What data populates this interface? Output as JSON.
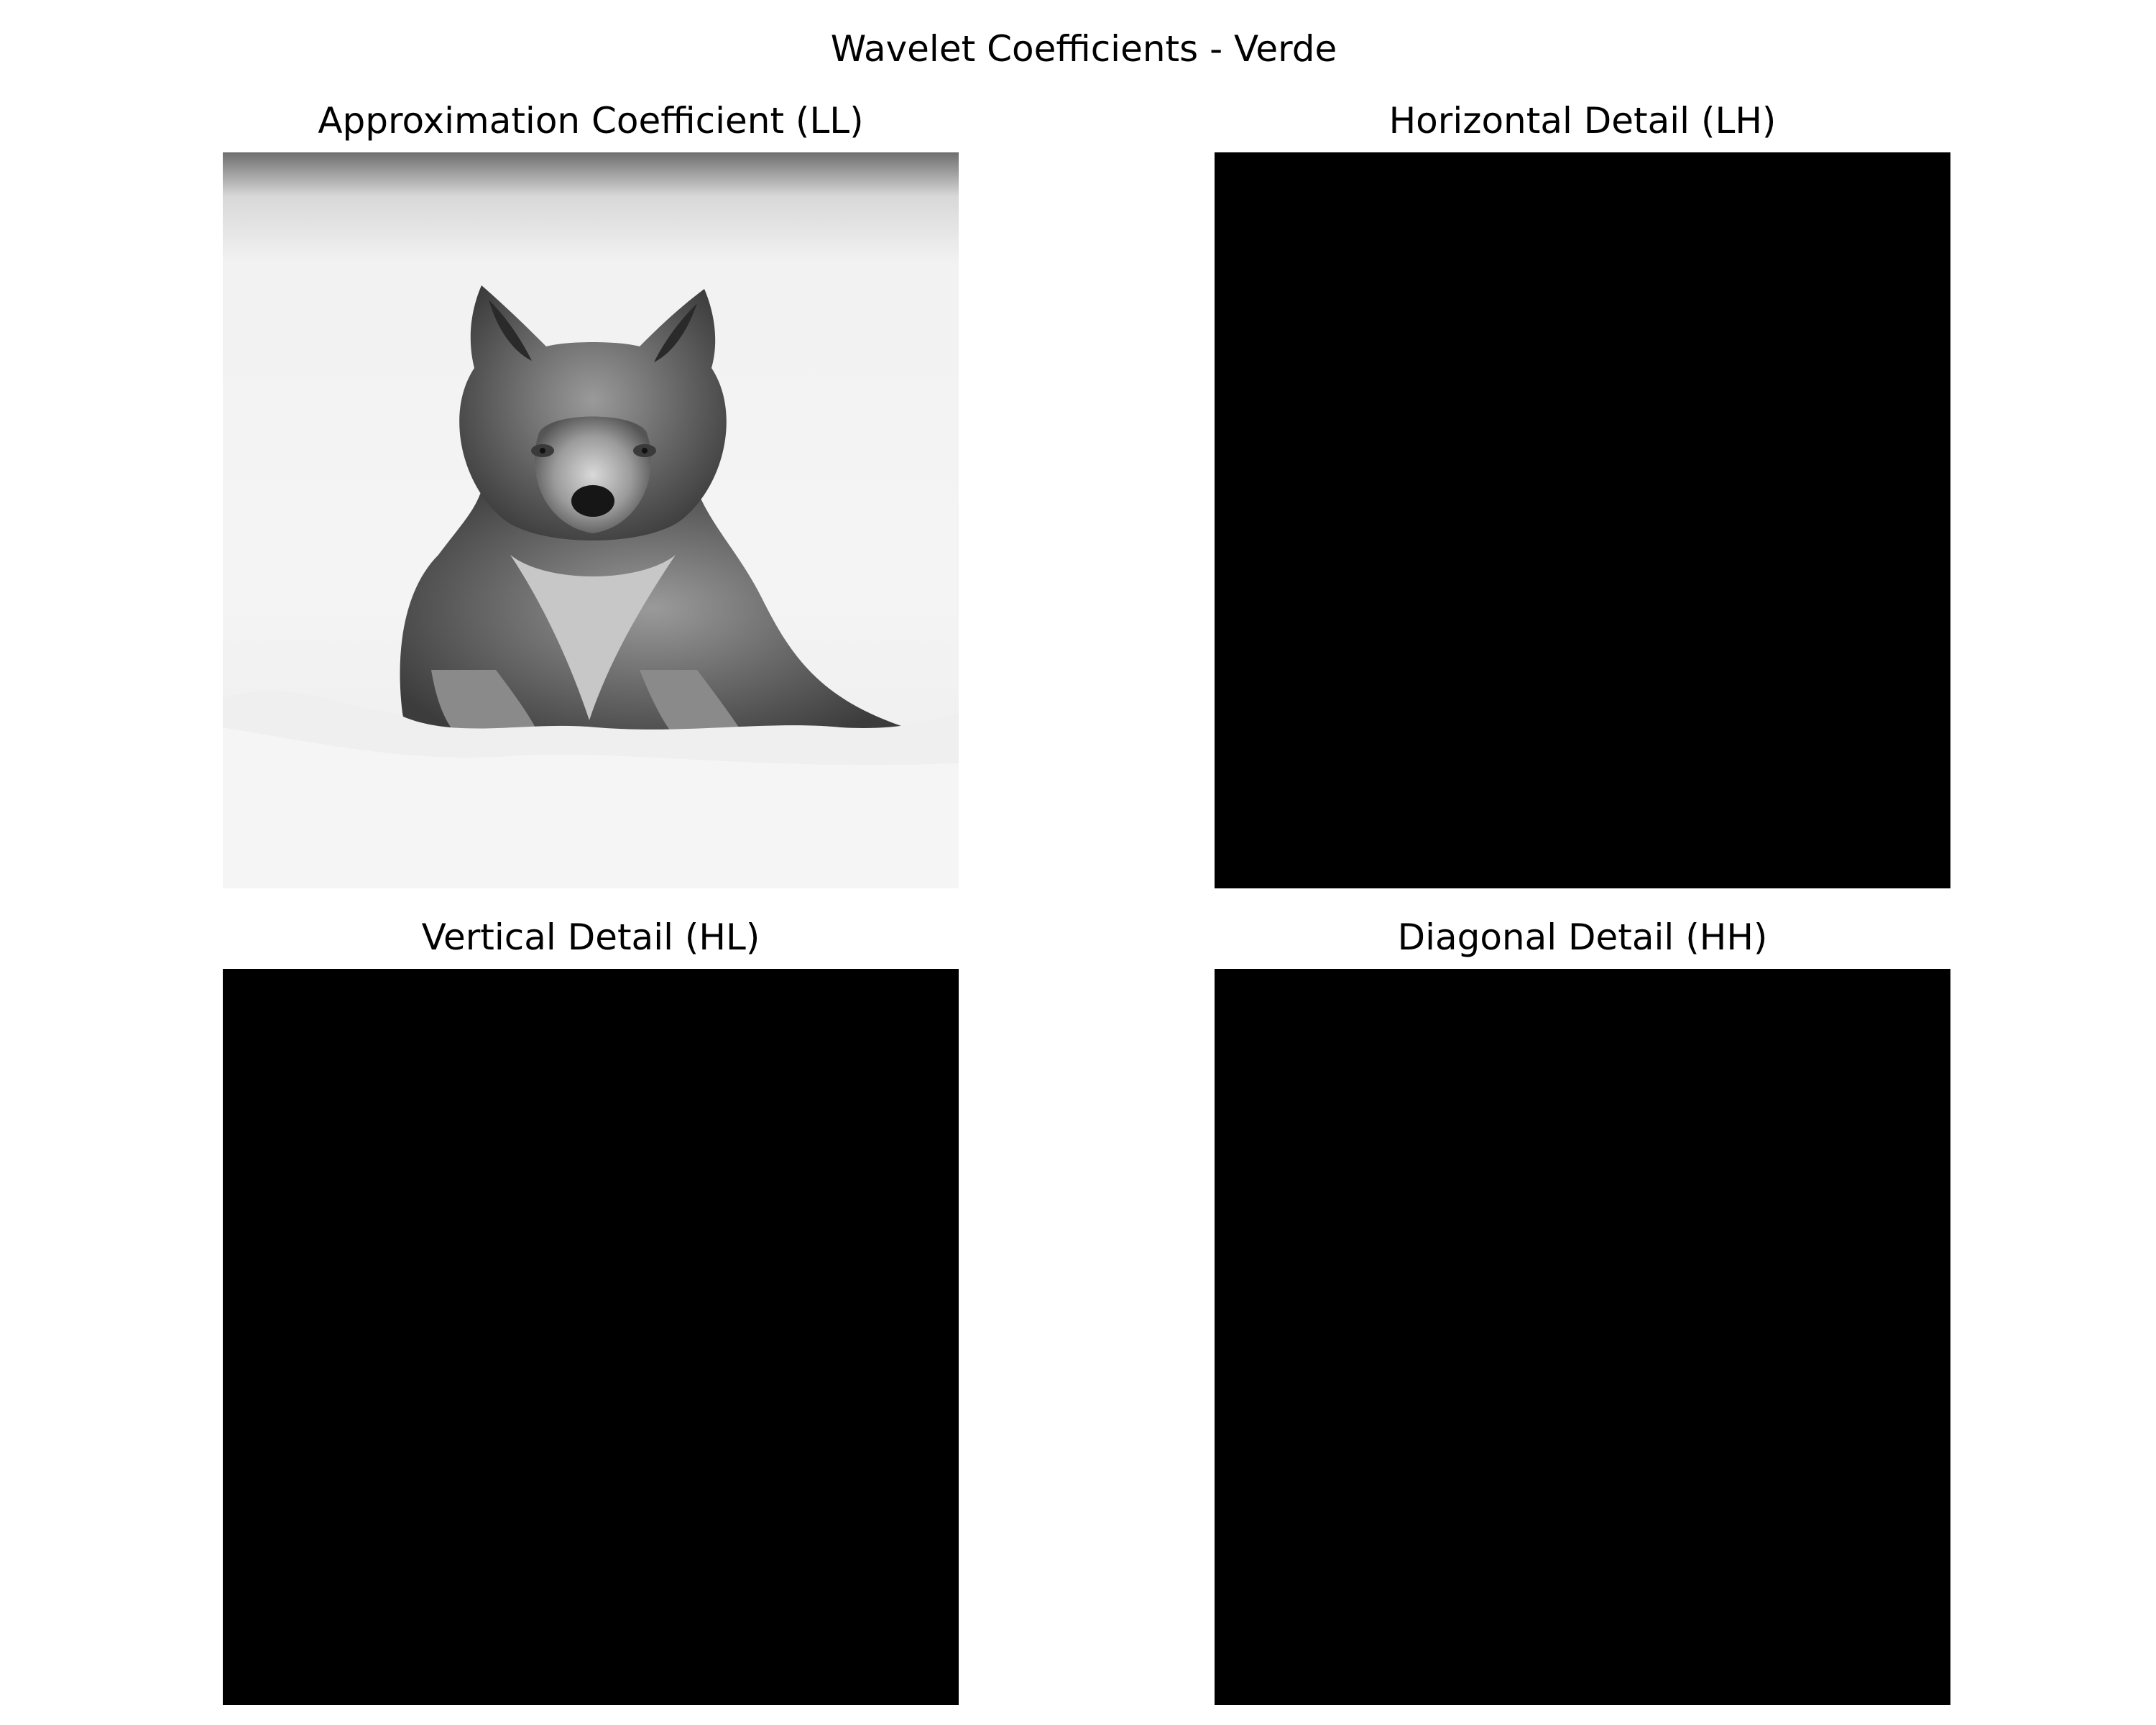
{
  "figure": {
    "title": "Wavelet Coefficients - Verde"
  },
  "panels": [
    {
      "title": "Approximation Coefficient (LL)",
      "content": "grayscale-wolf-in-snow"
    },
    {
      "title": "Horizontal Detail (LH)",
      "content": "black"
    },
    {
      "title": "Vertical Detail (HL)",
      "content": "black"
    },
    {
      "title": "Diagonal Detail (HH)",
      "content": "black"
    }
  ],
  "colors": {
    "background": "#ffffff",
    "detail_fill": "#000000",
    "text": "#000000"
  }
}
